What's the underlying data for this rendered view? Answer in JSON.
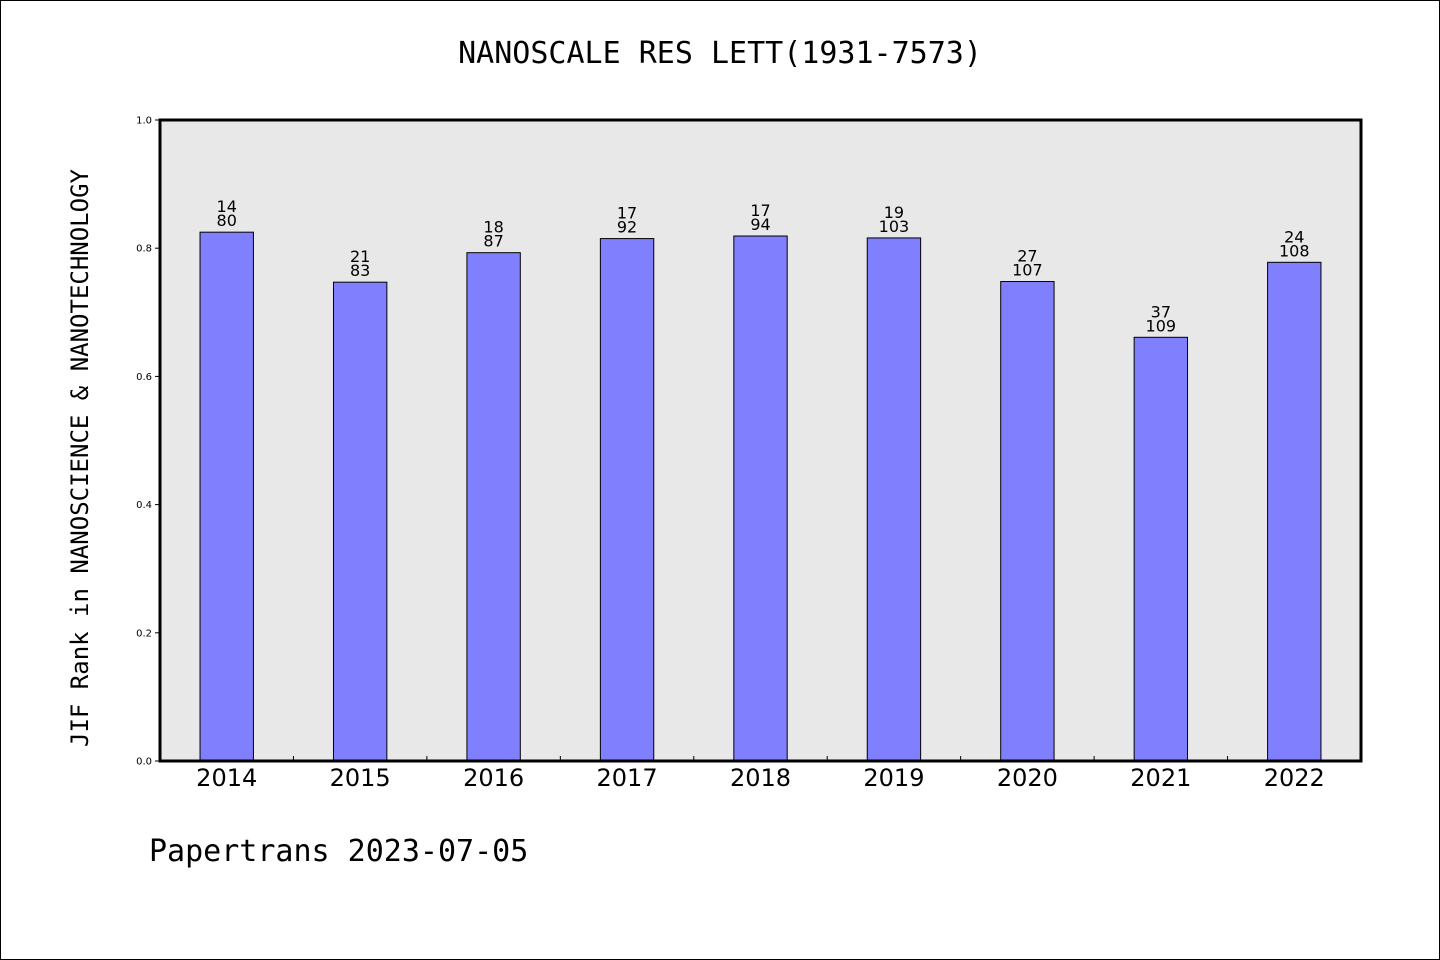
{
  "chart_data": {
    "type": "bar",
    "title": "NANOSCALE RES LETT(1931-7573)",
    "xlabel": "",
    "ylabel": "JIF Rank in NANOSCIENCE & NANOTECHNOLOGY",
    "ylim": [
      0.0,
      1.0
    ],
    "yticks": [
      "0.0",
      "0.2",
      "0.4",
      "0.6",
      "0.8",
      "1.0"
    ],
    "categories": [
      "2014",
      "2015",
      "2016",
      "2017",
      "2018",
      "2019",
      "2020",
      "2021",
      "2022"
    ],
    "values": [
      0.825,
      0.747,
      0.793,
      0.815,
      0.819,
      0.816,
      0.748,
      0.661,
      0.778
    ],
    "rank": [
      "14",
      "21",
      "18",
      "17",
      "17",
      "19",
      "27",
      "37",
      "24"
    ],
    "total": [
      "80",
      "83",
      "87",
      "92",
      "94",
      "103",
      "107",
      "109",
      "108"
    ],
    "grid": false,
    "colors": {
      "bar": "#8080ff",
      "plot_background": "#e8e8e8",
      "axis": "#000000"
    }
  },
  "footer": "Papertrans 2023-07-05"
}
